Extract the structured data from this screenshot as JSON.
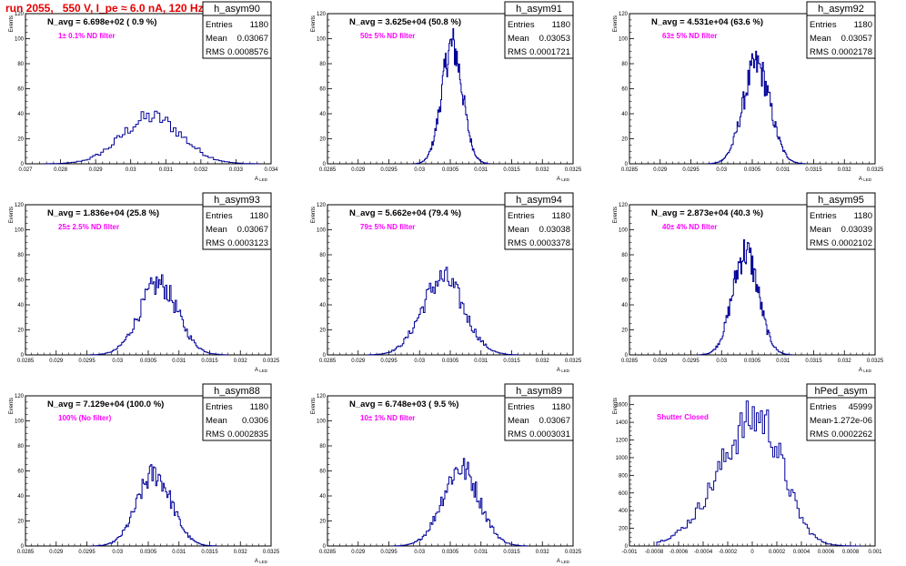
{
  "page": {
    "run_title": "run 2055,   550 V, I_pe ≈ 6.0 nA, 120 Hz"
  },
  "colors": {
    "histogram_line": "#000099",
    "filter_label": "#ff00ff",
    "run_title": "#e60000",
    "frame": "#000000"
  },
  "chart_data": [
    {
      "type": "histogram",
      "name": "h_asym90",
      "stats": {
        "entries": "1180",
        "mean": "0.03067",
        "rms": "0.0008576"
      },
      "n_avg_label": "N_avg = 6.698e+02 ( 0.9 %)",
      "filter_label": "1± 0.1% ND filter",
      "ylabel": "Events",
      "xlabel": "A_LED",
      "xlim": [
        0.027,
        0.034
      ],
      "ylim": [
        0,
        120
      ],
      "xticks": [
        0.027,
        0.028,
        0.029,
        0.03,
        0.031,
        0.032,
        0.033,
        0.034
      ],
      "xtick_labels": [
        "0.027",
        "0.028",
        "0.029",
        "0.03",
        "0.031",
        "0.032",
        "0.033",
        "0.034"
      ],
      "yticks": [
        0,
        20,
        40,
        60,
        80,
        100,
        120
      ],
      "ytick_labels": [
        "0",
        "20",
        "40",
        "60",
        "80",
        "100",
        "120"
      ],
      "peak": 42,
      "shape": {
        "center": 0.0306,
        "sigma": 0.00085,
        "n": 80
      }
    },
    {
      "type": "histogram",
      "name": "h_asym91",
      "stats": {
        "entries": "1180",
        "mean": "0.03053",
        "rms": "0.0001721"
      },
      "n_avg_label": "N_avg = 3.625e+04 (50.8 %)",
      "filter_label": "50± 5% ND filter",
      "ylabel": "Events",
      "xlabel": "A_LED",
      "xlim": [
        0.0285,
        0.0325
      ],
      "ylim": [
        0,
        120
      ],
      "xticks": [
        0.0285,
        0.029,
        0.0295,
        0.03,
        0.0305,
        0.031,
        0.0315,
        0.032,
        0.0325
      ],
      "xtick_labels": [
        "0.0285",
        "0.029",
        "0.0295",
        "0.03",
        "0.0305",
        "0.031",
        "0.0315",
        "0.032",
        "0.0325"
      ],
      "yticks": [
        0,
        20,
        40,
        60,
        80,
        100,
        120
      ],
      "ytick_labels": [
        "0",
        "20",
        "40",
        "60",
        "80",
        "100",
        "120"
      ],
      "peak": 108,
      "shape": {
        "center": 0.03053,
        "sigma": 0.00017,
        "n": 100
      }
    },
    {
      "type": "histogram",
      "name": "h_asym92",
      "stats": {
        "entries": "1180",
        "mean": "0.03057",
        "rms": "0.0002178"
      },
      "n_avg_label": "N_avg = 4.531e+04 (63.6 %)",
      "filter_label": "63± 5% ND filter",
      "ylabel": "Events",
      "xlabel": "A_LED",
      "xlim": [
        0.0285,
        0.0325
      ],
      "ylim": [
        0,
        120
      ],
      "xticks": [
        0.0285,
        0.029,
        0.0295,
        0.03,
        0.0305,
        0.031,
        0.0315,
        0.032,
        0.0325
      ],
      "xtick_labels": [
        "0.0285",
        "0.029",
        "0.0295",
        "0.03",
        "0.0305",
        "0.031",
        "0.0315",
        "0.032",
        "0.0325"
      ],
      "yticks": [
        0,
        20,
        40,
        60,
        80,
        100,
        120
      ],
      "ytick_labels": [
        "0",
        "20",
        "40",
        "60",
        "80",
        "100",
        "120"
      ],
      "peak": 90,
      "shape": {
        "center": 0.03057,
        "sigma": 0.00022,
        "n": 100
      }
    },
    {
      "type": "histogram",
      "name": "h_asym93",
      "stats": {
        "entries": "1180",
        "mean": "0.03067",
        "rms": "0.0003123"
      },
      "n_avg_label": "N_avg = 1.836e+04 (25.8 %)",
      "filter_label": "25± 2.5% ND filter",
      "ylabel": "Events",
      "xlabel": "A_LED",
      "xlim": [
        0.0285,
        0.0325
      ],
      "ylim": [
        0,
        120
      ],
      "xticks": [
        0.0285,
        0.029,
        0.0295,
        0.03,
        0.0305,
        0.031,
        0.0315,
        0.032,
        0.0325
      ],
      "xtick_labels": [
        "0.0285",
        "0.029",
        "0.0295",
        "0.03",
        "0.0305",
        "0.031",
        "0.0315",
        "0.032",
        "0.0325"
      ],
      "yticks": [
        0,
        20,
        40,
        60,
        80,
        100,
        120
      ],
      "ytick_labels": [
        "0",
        "20",
        "40",
        "60",
        "80",
        "100",
        "120"
      ],
      "peak": 64,
      "shape": {
        "center": 0.03067,
        "sigma": 0.00031,
        "n": 100
      }
    },
    {
      "type": "histogram",
      "name": "h_asym94",
      "stats": {
        "entries": "1180",
        "mean": "0.03038",
        "rms": "0.0003378"
      },
      "n_avg_label": "N_avg = 5.662e+04 (79.4 %)",
      "filter_label": "79± 5% ND filter",
      "ylabel": "Events",
      "xlabel": "A_LED",
      "xlim": [
        0.0285,
        0.0325
      ],
      "ylim": [
        0,
        120
      ],
      "xticks": [
        0.0285,
        0.029,
        0.0295,
        0.03,
        0.0305,
        0.031,
        0.0315,
        0.032,
        0.0325
      ],
      "xtick_labels": [
        "0.0285",
        "0.029",
        "0.0295",
        "0.03",
        "0.0305",
        "0.031",
        "0.0315",
        "0.032",
        "0.0325"
      ],
      "yticks": [
        0,
        20,
        40,
        60,
        80,
        100,
        120
      ],
      "ytick_labels": [
        "0",
        "20",
        "40",
        "60",
        "80",
        "100",
        "120"
      ],
      "peak": 70,
      "shape": {
        "center": 0.03038,
        "sigma": 0.00034,
        "n": 100
      }
    },
    {
      "type": "histogram",
      "name": "h_asym95",
      "stats": {
        "entries": "1180",
        "mean": "0.03039",
        "rms": "0.0002102"
      },
      "n_avg_label": "N_avg = 2.873e+04 (40.3 %)",
      "filter_label": "40± 4% ND filter",
      "ylabel": "Events",
      "xlabel": "A_LED",
      "xlim": [
        0.0285,
        0.0325
      ],
      "ylim": [
        0,
        120
      ],
      "xticks": [
        0.0285,
        0.029,
        0.0295,
        0.03,
        0.0305,
        0.031,
        0.0315,
        0.032,
        0.0325
      ],
      "xtick_labels": [
        "0.0285",
        "0.029",
        "0.0295",
        "0.03",
        "0.0305",
        "0.031",
        "0.0315",
        "0.032",
        "0.0325"
      ],
      "yticks": [
        0,
        20,
        40,
        60,
        80,
        100,
        120
      ],
      "ytick_labels": [
        "0",
        "20",
        "40",
        "60",
        "80",
        "100",
        "120"
      ],
      "peak": 92,
      "shape": {
        "center": 0.03039,
        "sigma": 0.00021,
        "n": 100
      }
    },
    {
      "type": "histogram",
      "name": "h_asym88",
      "stats": {
        "entries": "1180",
        "mean": "0.0306",
        "rms": "0.0002835"
      },
      "n_avg_label": "N_avg = 7.129e+04 (100.0 %)",
      "filter_label": "100% (No filter)",
      "ylabel": "Events",
      "xlabel": "A_LED",
      "xlim": [
        0.0285,
        0.0325
      ],
      "ylim": [
        0,
        120
      ],
      "xticks": [
        0.0285,
        0.029,
        0.0295,
        0.03,
        0.0305,
        0.031,
        0.0315,
        0.032,
        0.0325
      ],
      "xtick_labels": [
        "0.0285",
        "0.029",
        "0.0295",
        "0.03",
        "0.0305",
        "0.031",
        "0.0315",
        "0.032",
        "0.0325"
      ],
      "yticks": [
        0,
        20,
        40,
        60,
        80,
        100,
        120
      ],
      "ytick_labels": [
        "0",
        "20",
        "40",
        "60",
        "80",
        "100",
        "120"
      ],
      "peak": 65,
      "shape": {
        "center": 0.0306,
        "sigma": 0.00028,
        "n": 100
      }
    },
    {
      "type": "histogram",
      "name": "h_asym89",
      "stats": {
        "entries": "1180",
        "mean": "0.03067",
        "rms": "0.0003031"
      },
      "n_avg_label": "N_avg = 6.748e+03 ( 9.5 %)",
      "filter_label": "10± 1% ND filter",
      "ylabel": "Events",
      "xlabel": "A_LED",
      "xlim": [
        0.0285,
        0.0325
      ],
      "ylim": [
        0,
        120
      ],
      "xticks": [
        0.0285,
        0.029,
        0.0295,
        0.03,
        0.0305,
        0.031,
        0.0315,
        0.032,
        0.0325
      ],
      "xtick_labels": [
        "0.0285",
        "0.029",
        "0.0295",
        "0.03",
        "0.0305",
        "0.031",
        "0.0315",
        "0.032",
        "0.0325"
      ],
      "yticks": [
        0,
        20,
        40,
        60,
        80,
        100,
        120
      ],
      "ytick_labels": [
        "0",
        "20",
        "40",
        "60",
        "80",
        "100",
        "120"
      ],
      "peak": 70,
      "shape": {
        "center": 0.03067,
        "sigma": 0.0003,
        "n": 100
      }
    },
    {
      "type": "histogram",
      "name": "hPed_asym",
      "stats": {
        "entries": "45999",
        "mean": "-1.272e-06",
        "rms": "0.0002262"
      },
      "n_avg_label": "",
      "filter_label": "Shutter Closed",
      "ylabel": "Events",
      "xlabel": "",
      "xlim": [
        -0.001,
        0.001
      ],
      "ylim": [
        0,
        1700
      ],
      "xticks": [
        -0.001,
        -0.0008,
        -0.0006,
        -0.0004,
        -0.0002,
        0,
        0.0002,
        0.0004,
        0.0006,
        0.0008,
        0.001
      ],
      "xtick_labels": [
        "-0.001",
        "-0.0008",
        "-0.0006",
        "-0.0004",
        "-0.0002",
        "0",
        "0.0002",
        "0.0004",
        "0.0006",
        "0.0008",
        "0.001"
      ],
      "yticks": [
        0,
        200,
        400,
        600,
        800,
        1000,
        1200,
        1400,
        1600
      ],
      "ytick_labels": [
        "0",
        "200",
        "400",
        "600",
        "800",
        "1000",
        "1200",
        "1400",
        "1600"
      ],
      "peak": 1640,
      "shape": {
        "center": 5e-05,
        "sigma": 0.00023,
        "n": 100,
        "skew": 0.5
      }
    }
  ]
}
